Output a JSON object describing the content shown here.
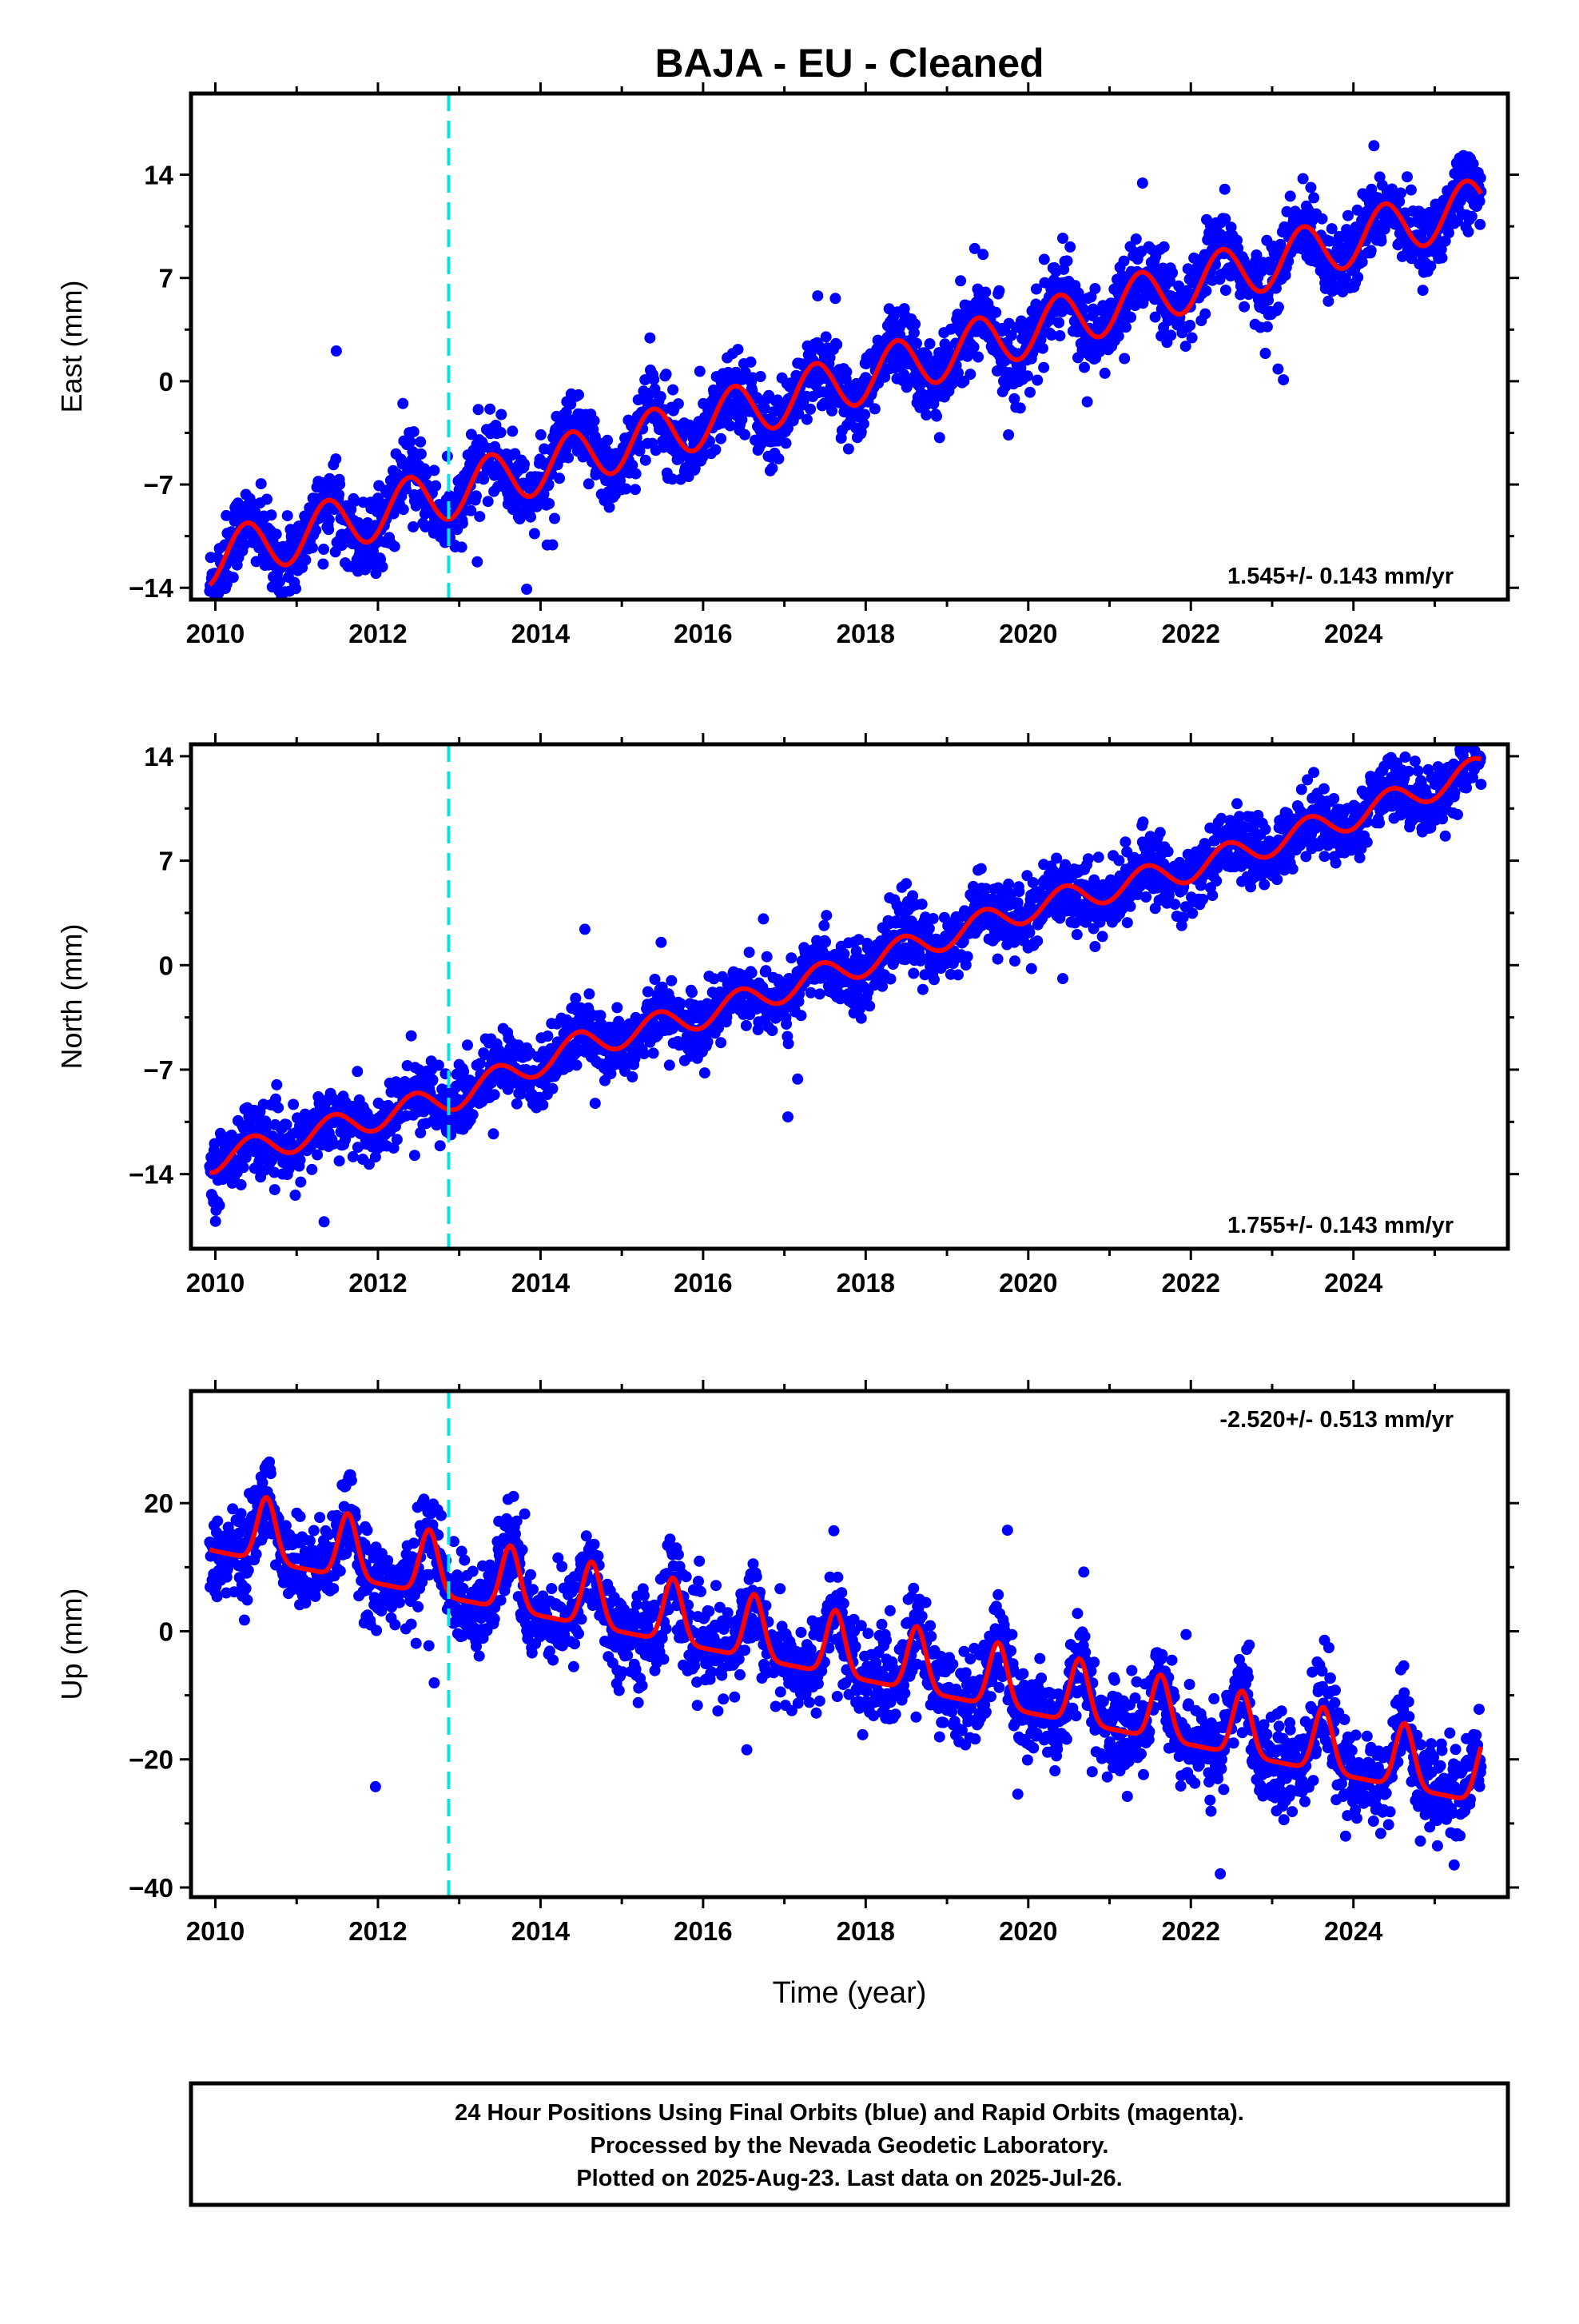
{
  "title": "BAJA  - EU - Cleaned",
  "footer": [
    "24 Hour Positions Using Final Orbits (blue) and Rapid Orbits (magenta).",
    "Processed by the Nevada Geodetic Laboratory.",
    "Plotted on 2025-Aug-23. Last data on 2025-Jul-26."
  ],
  "colors": {
    "data": "#0000ff",
    "model": "#ff0000",
    "event": "#00e5e5",
    "frame": "#000000"
  },
  "chart_data": [
    {
      "type": "scatter",
      "name": "east",
      "title": "BAJA  - EU - Cleaned",
      "ylabel": "East (mm)",
      "xlabel": "",
      "xlim": [
        2009.7,
        2025.9
      ],
      "ylim": [
        -14.8,
        19.5
      ],
      "xticks": [
        2010,
        2012,
        2014,
        2016,
        2018,
        2020,
        2022,
        2024
      ],
      "yticks": [
        -14,
        -7,
        0,
        7,
        14
      ],
      "rate_label": "1.545+/- 0.143 mm/yr",
      "event_x": 2012.87,
      "data_span": [
        2009.93,
        2025.57
      ],
      "model": {
        "description": "linear trend plus annual sinusoid",
        "value_at_2010": -12.0,
        "trend_mm_per_yr": 1.545,
        "annual_amplitude_mm": 1.8,
        "annual_peak_phase_yr": 0.38,
        "scatter_sd_mm": 1.3
      }
    },
    {
      "type": "scatter",
      "name": "north",
      "ylabel": "North (mm)",
      "xlabel": "",
      "xlim": [
        2009.7,
        2025.9
      ],
      "ylim": [
        -19.0,
        14.8
      ],
      "xticks": [
        2010,
        2012,
        2014,
        2016,
        2018,
        2020,
        2022,
        2024
      ],
      "yticks": [
        -14,
        -7,
        0,
        7,
        14
      ],
      "rate_label": "1.755+/- 0.143 mm/yr",
      "event_x": 2012.87,
      "data_span": [
        2009.93,
        2025.57
      ],
      "model": {
        "description": "piecewise linear trend plus small annual sinusoid",
        "trend_knots": [
          [
            2010.0,
            -13.0
          ],
          [
            2013.0,
            -8.7
          ],
          [
            2014.5,
            -5.3
          ],
          [
            2016.0,
            -3.3
          ],
          [
            2018.0,
            0.2
          ],
          [
            2020.0,
            3.8
          ],
          [
            2022.0,
            6.5
          ],
          [
            2024.0,
            10.0
          ],
          [
            2025.6,
            13.2
          ]
        ],
        "annual_amplitude_mm": 0.9,
        "annual_peak_phase_yr": 0.45,
        "scatter_sd_mm": 1.1
      }
    },
    {
      "type": "scatter",
      "name": "up",
      "ylabel": "Up (mm)",
      "xlabel": "Time (year)",
      "xlim": [
        2009.7,
        2025.9
      ],
      "ylim": [
        -41.5,
        37.5
      ],
      "xticks": [
        2010,
        2012,
        2014,
        2016,
        2018,
        2020,
        2022,
        2024
      ],
      "yticks": [
        -40,
        -20,
        0,
        20
      ],
      "rate_label": "-2.520+/- 0.513 mm/yr",
      "event_x": 2012.87,
      "data_span": [
        2009.93,
        2025.57
      ],
      "model": {
        "description": "linear trend plus peaked annual signal",
        "value_at_2010": 16.0,
        "trend_mm_per_yr": -2.52,
        "annual_amplitude_mm": 10.0,
        "annual_peak_phase_yr": 0.63,
        "scatter_sd_mm": 3.5
      }
    }
  ]
}
